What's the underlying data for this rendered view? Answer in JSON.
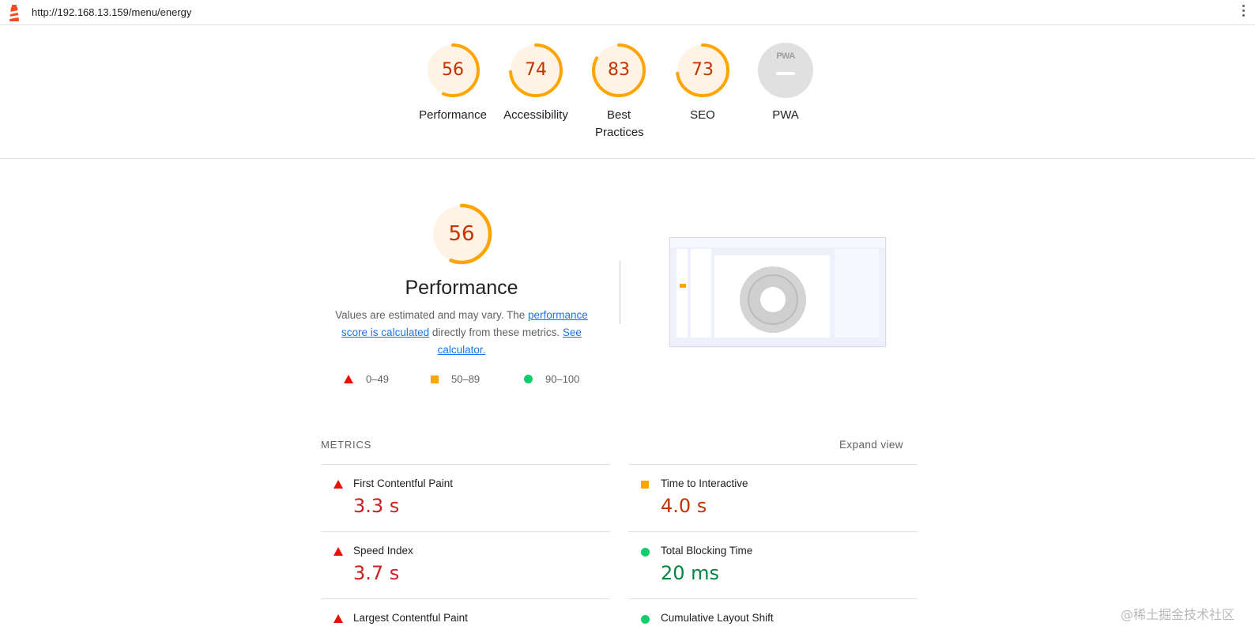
{
  "address_bar": {
    "url": "http://192.168.13.159/menu/energy"
  },
  "scores": [
    {
      "label": "Performance",
      "value": "56",
      "fraction": 0.56
    },
    {
      "label": "Accessibility",
      "value": "74",
      "fraction": 0.74
    },
    {
      "label": "Best Practices",
      "value": "83",
      "fraction": 0.83
    },
    {
      "label": "SEO",
      "value": "73",
      "fraction": 0.73
    },
    {
      "label": "PWA",
      "value": ""
    }
  ],
  "pwa_badge": {
    "text": "PWA"
  },
  "performance": {
    "score": "56",
    "fraction": 0.56,
    "title": "Performance",
    "desc_prefix": "Values are estimated and may vary. The ",
    "desc_link1": "performance score is calculated",
    "desc_mid": " directly from these metrics. ",
    "desc_link2": "See calculator."
  },
  "legend": [
    {
      "shape": "triangle",
      "range": "0–49",
      "color": "#eb0f00"
    },
    {
      "shape": "square",
      "range": "50–89",
      "color": "#ffa400"
    },
    {
      "shape": "circle",
      "range": "90–100",
      "color": "#0cce6b"
    }
  ],
  "metrics": {
    "header": "METRICS",
    "expand_label": "Expand view",
    "left": [
      {
        "name": "First Contentful Paint",
        "value": "3.3 s",
        "status": "fail"
      },
      {
        "name": "Speed Index",
        "value": "3.7 s",
        "status": "fail"
      },
      {
        "name": "Largest Contentful Paint",
        "value": "",
        "status": "fail"
      }
    ],
    "right": [
      {
        "name": "Time to Interactive",
        "value": "4.0 s",
        "status": "average"
      },
      {
        "name": "Total Blocking Time",
        "value": "20 ms",
        "status": "pass"
      },
      {
        "name": "Cumulative Layout Shift",
        "value": "",
        "status": "pass"
      }
    ]
  },
  "watermark": "@稀土掘金技术社区",
  "colors": {
    "orange": "#ffa400",
    "red": "#eb0f00",
    "green": "#0cce6b",
    "score_text": "#c33300",
    "gauge_bg": "#fff3e5"
  }
}
